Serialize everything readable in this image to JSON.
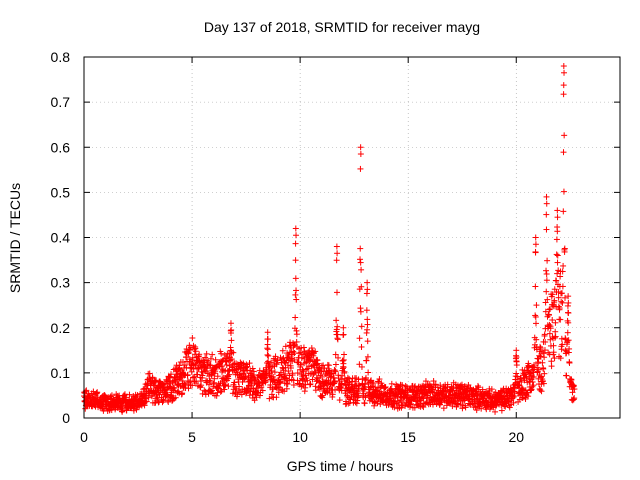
{
  "chart_data": {
    "type": "scatter",
    "title": "Day 137 of 2018, SRMTID for receiver mayg",
    "xlabel": "GPS time / hours",
    "ylabel": "SRMTID / TECUs",
    "xlim": [
      0,
      24.8
    ],
    "ylim": [
      0,
      0.8
    ],
    "xticks": [
      0,
      5,
      10,
      15,
      20
    ],
    "xtick_labels": [
      "0",
      "5",
      "10",
      "15",
      "20"
    ],
    "yticks": [
      0,
      0.1,
      0.2,
      0.3,
      0.4,
      0.5,
      0.6,
      0.7,
      0.8
    ],
    "ytick_labels": [
      "0",
      "0.1",
      "0.2",
      "0.3",
      "0.4",
      "0.5",
      "0.6",
      "0.7",
      "0.8"
    ],
    "grid": true,
    "marker": "+",
    "color": "#ff0000",
    "series": [
      {
        "name": "SRMTID",
        "baseline_profile": {
          "x": [
            0,
            1,
            2,
            2.7,
            3,
            3.5,
            4,
            4.5,
            5,
            5.5,
            6,
            6.5,
            7,
            7.5,
            8,
            8.5,
            9,
            9.5,
            10,
            10.5,
            11,
            11.5,
            12,
            12.5,
            13,
            13.5,
            14,
            15,
            16,
            17,
            18,
            19,
            19.5,
            20,
            20.5,
            21,
            21.3,
            21.6,
            22,
            22.3,
            22.6
          ],
          "y": [
            0.045,
            0.035,
            0.035,
            0.04,
            0.07,
            0.06,
            0.07,
            0.1,
            0.13,
            0.1,
            0.1,
            0.11,
            0.1,
            0.085,
            0.08,
            0.09,
            0.1,
            0.13,
            0.12,
            0.12,
            0.09,
            0.08,
            0.07,
            0.06,
            0.06,
            0.06,
            0.055,
            0.05,
            0.055,
            0.055,
            0.05,
            0.04,
            0.045,
            0.06,
            0.09,
            0.1,
            0.14,
            0.2,
            0.25,
            0.15,
            0.06
          ]
        },
        "x_end": 22.7,
        "spikes": [
          {
            "x": 6.8,
            "peak": 0.21
          },
          {
            "x": 8.5,
            "peak": 0.19
          },
          {
            "x": 9.8,
            "peak": 0.42
          },
          {
            "x": 11.7,
            "peak": 0.38
          },
          {
            "x": 12.0,
            "peak": 0.2
          },
          {
            "x": 12.8,
            "peak": 0.6
          },
          {
            "x": 13.1,
            "peak": 0.3
          },
          {
            "x": 20.0,
            "peak": 0.15
          },
          {
            "x": 20.9,
            "peak": 0.4
          },
          {
            "x": 21.4,
            "peak": 0.49
          },
          {
            "x": 21.9,
            "peak": 0.46
          },
          {
            "x": 22.2,
            "peak": 0.78
          },
          {
            "x": 22.4,
            "peak": 0.27
          }
        ]
      }
    ]
  }
}
